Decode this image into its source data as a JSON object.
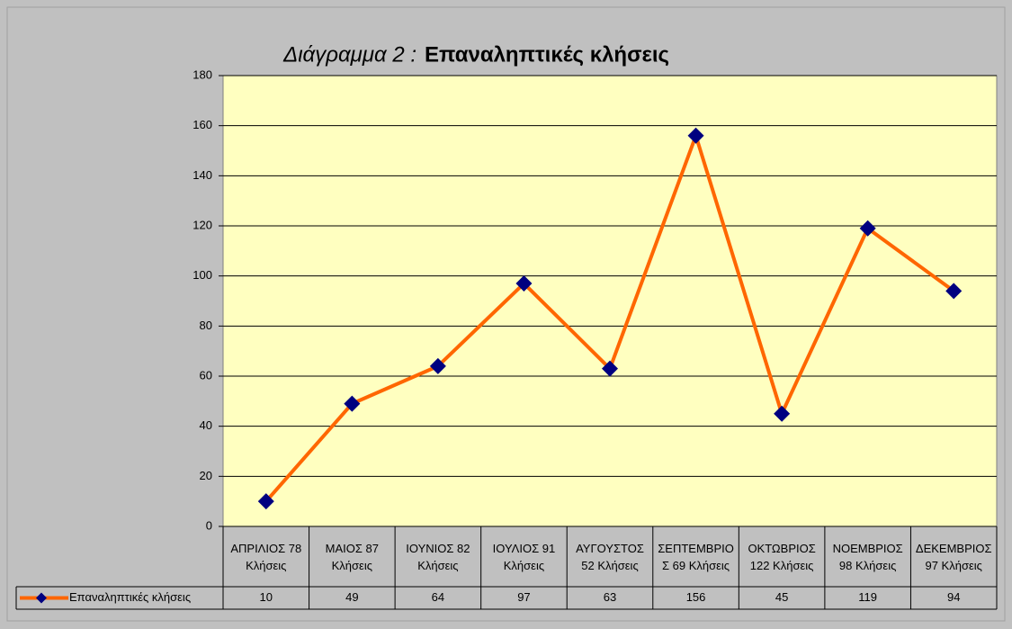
{
  "chart_data": {
    "type": "line",
    "chart_label": "Διάγραμμα 2 :",
    "title": "Επαναληπτικές κλήσεις",
    "categories": [
      "ΑΠΡΙΛΙΟΣ 78 Κλήσεις",
      "ΜΑΙΟΣ 87 Κλήσεις",
      "ΙΟΥΝΙΟΣ 82 Κλήσεις",
      "ΙΟΥΛΙΟΣ 91 Κλήσεις",
      "ΑΥΓΟΥΣΤΟΣ 52 Κλήσεις",
      "ΣΕΠΤΕΜΒΡΙΟΣ 69 Κλήσεις",
      "ΟΚΤΩΒΡΙΟΣ 122 Κλήσεις",
      "ΝΟΕΜΒΡΙΟΣ 98 Κλήσεις",
      "ΔΕΚΕΜΒΡΙΟΣ 97 Κλήσεις"
    ],
    "series": [
      {
        "name": "Επαναληπτικές κλήσεις",
        "color": "#ff6600",
        "marker_color": "#000080",
        "values": [
          10,
          49,
          64,
          97,
          63,
          156,
          45,
          119,
          94
        ]
      }
    ],
    "ylim": [
      0,
      180
    ],
    "yticks": [
      0,
      20,
      40,
      60,
      80,
      100,
      120,
      140,
      160,
      180
    ],
    "grid": true
  }
}
